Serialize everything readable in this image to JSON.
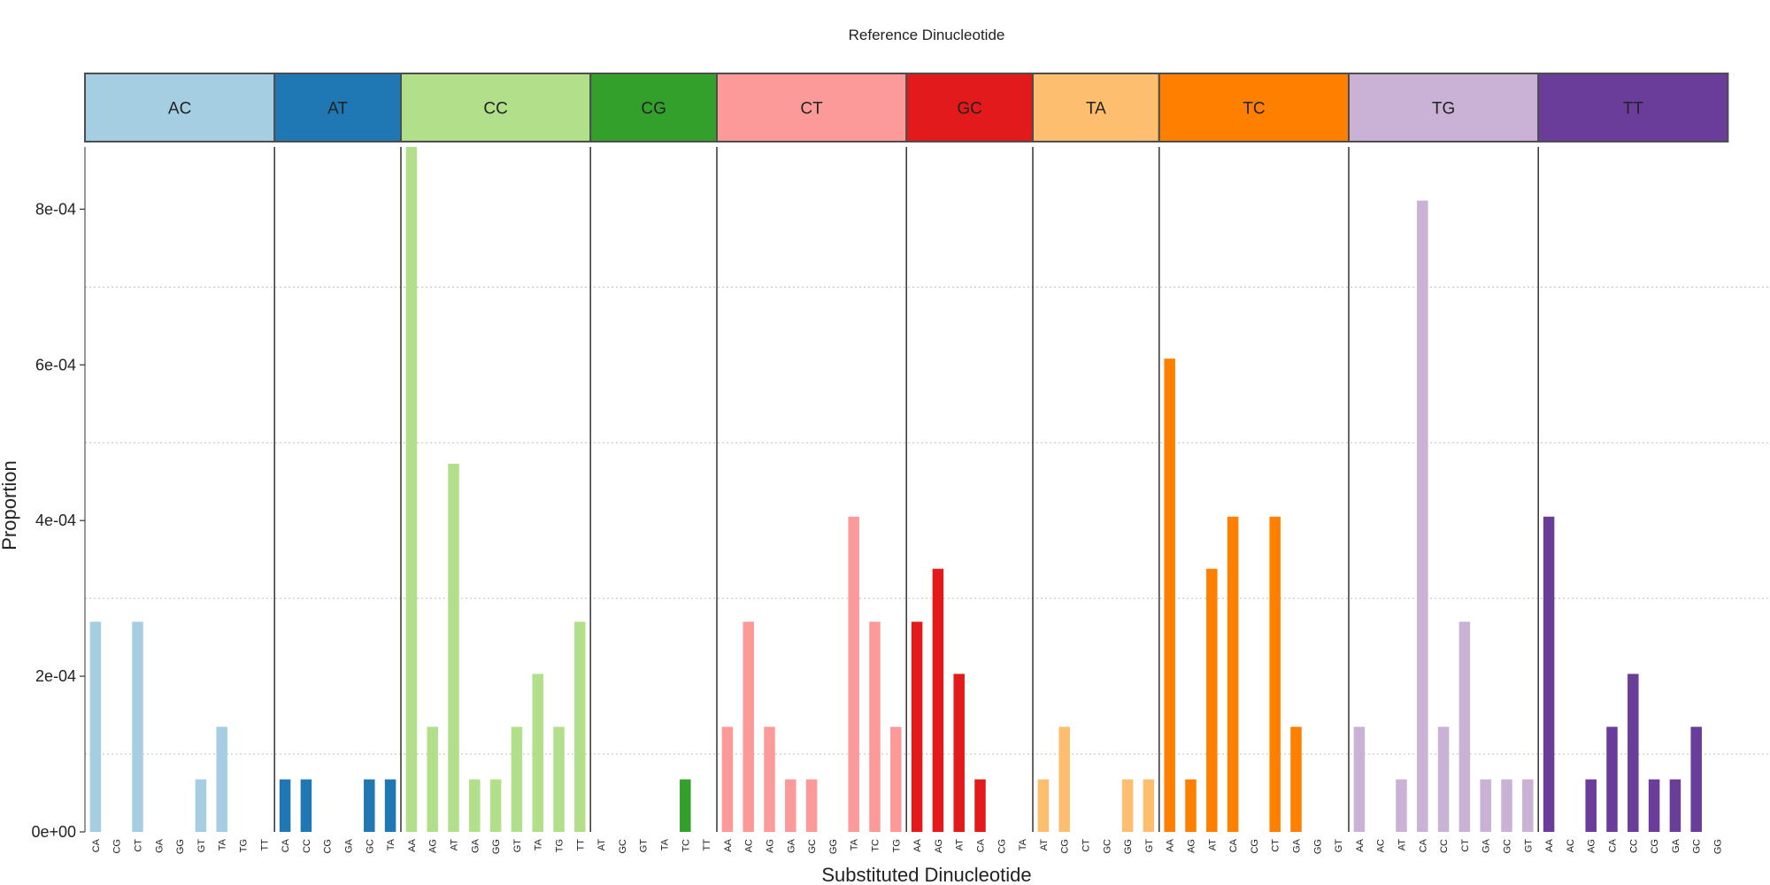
{
  "chart_data": {
    "type": "bar",
    "title": "Reference Dinucleotide",
    "xlabel": "Substituted Dinucleotide",
    "ylabel": "Proportion",
    "ylim": [
      0,
      0.00088
    ],
    "yticks": [
      0,
      0.0002,
      0.0004,
      0.0006,
      0.0008
    ],
    "ytick_labels": [
      "0e+00",
      "2e-04",
      "4e-04",
      "6e-04",
      "8e-04"
    ],
    "grid": "horizontal dotted minor lines",
    "facets": [
      {
        "label": "AC",
        "color": "#A6CEE3",
        "categories": [
          "CA",
          "CG",
          "CT",
          "GA",
          "GG",
          "GT",
          "TA",
          "TG",
          "TT"
        ],
        "values": [
          0.00027,
          0,
          0.00027,
          0,
          0,
          6.75e-05,
          0.000135,
          0,
          0
        ]
      },
      {
        "label": "AT",
        "color": "#1F78B4",
        "categories": [
          "CA",
          "CC",
          "CG",
          "GA",
          "GC",
          "TA"
        ],
        "values": [
          6.75e-05,
          6.75e-05,
          0,
          0,
          6.75e-05,
          6.75e-05
        ]
      },
      {
        "label": "CC",
        "color": "#B2DF8A",
        "categories": [
          "AA",
          "AG",
          "AT",
          "GA",
          "GG",
          "GT",
          "TA",
          "TG",
          "TT"
        ],
        "values": [
          0.00088,
          0.000135,
          0.000473,
          6.75e-05,
          6.75e-05,
          0.000135,
          0.000203,
          0.000135,
          0.00027
        ]
      },
      {
        "label": "CG",
        "color": "#33A02C",
        "categories": [
          "AT",
          "GC",
          "GT",
          "TA",
          "TC",
          "TT"
        ],
        "values": [
          0,
          0,
          0,
          0,
          6.75e-05,
          0
        ]
      },
      {
        "label": "CT",
        "color": "#FB9A99",
        "categories": [
          "AA",
          "AC",
          "AG",
          "GA",
          "GC",
          "GG",
          "TA",
          "TC",
          "TG"
        ],
        "values": [
          0.000135,
          0.00027,
          0.000135,
          6.75e-05,
          6.75e-05,
          0,
          0.000405,
          0.00027,
          0.000135
        ]
      },
      {
        "label": "GC",
        "color": "#E31A1C",
        "categories": [
          "AA",
          "AG",
          "AT",
          "CA",
          "CG",
          "TA"
        ],
        "values": [
          0.00027,
          0.000338,
          0.000203,
          6.75e-05,
          0,
          0
        ]
      },
      {
        "label": "TA",
        "color": "#FDBF6F",
        "categories": [
          "AT",
          "CG",
          "CT",
          "GC",
          "GG",
          "GT"
        ],
        "values": [
          6.75e-05,
          0.000135,
          0,
          0,
          6.75e-05,
          6.75e-05
        ]
      },
      {
        "label": "TC",
        "color": "#FF7F00",
        "categories": [
          "AA",
          "AG",
          "AT",
          "CA",
          "CG",
          "CT",
          "GA",
          "GG",
          "GT"
        ],
        "values": [
          0.000608,
          6.75e-05,
          0.000338,
          0.000405,
          0,
          0.000405,
          0.000135,
          0,
          0
        ]
      },
      {
        "label": "TG",
        "color": "#CAB2D6",
        "categories": [
          "AA",
          "AC",
          "AT",
          "CA",
          "CC",
          "CT",
          "GA",
          "GC",
          "GT"
        ],
        "values": [
          0.000135,
          0,
          6.75e-05,
          0.000811,
          0.000135,
          0.00027,
          6.75e-05,
          6.75e-05,
          6.75e-05
        ]
      },
      {
        "label": "TT",
        "color": "#6A3D9A",
        "categories": [
          "AA",
          "AC",
          "AG",
          "CA",
          "CC",
          "CG",
          "GA",
          "GC",
          "GG"
        ],
        "values": [
          0.000405,
          0,
          6.75e-05,
          0.000135,
          0.000203,
          6.75e-05,
          6.75e-05,
          0.000135,
          0
        ]
      }
    ]
  }
}
